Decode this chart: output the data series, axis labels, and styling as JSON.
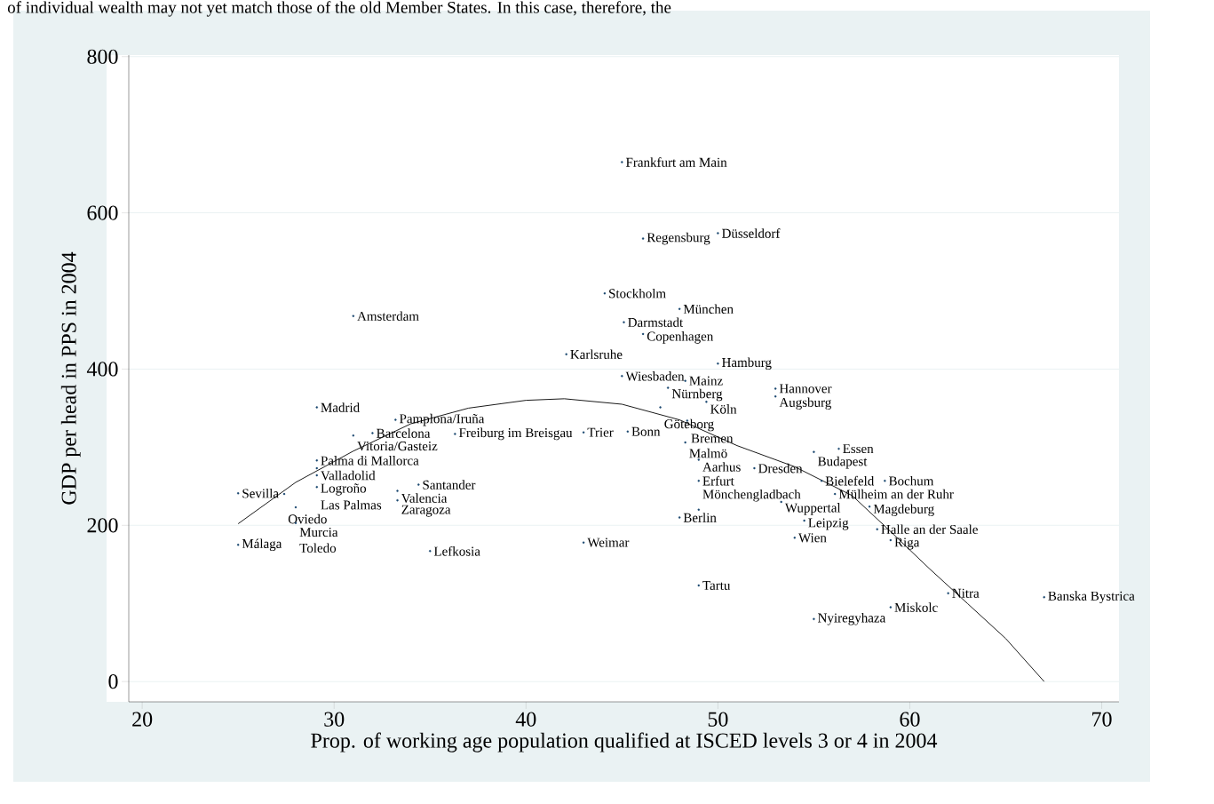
{
  "chart_data": {
    "type": "scatter",
    "xlabel": "Prop. of working age population qualified at ISCED levels 3 or 4 in 2004",
    "ylabel": "GDP per head in PPS in 2004",
    "xlim": [
      19.3,
      70.9
    ],
    "ylim": [
      -26,
      802
    ],
    "xticks": [
      20,
      30,
      40,
      50,
      60,
      70
    ],
    "yticks": [
      0,
      200,
      400,
      600,
      800
    ],
    "grid": "y",
    "series": [
      {
        "color": "#1a476f",
        "marker": "circle",
        "x": [
          45.0,
          46.1,
          50.0,
          44.1,
          48.0,
          45.1,
          46.1,
          31.0,
          42.1,
          50.0,
          45.0,
          48.3,
          47.4,
          53.0,
          53.0,
          49.4,
          47.0,
          29.1,
          33.2,
          48.4,
          45.3,
          43.0,
          32.0,
          36.3,
          31.0,
          48.3,
          56.3,
          55.0,
          49.0,
          29.1,
          51.9,
          29.1,
          29.1,
          49.0,
          55.4,
          58.7,
          34.4,
          29.1,
          33.3,
          25.0,
          27.4,
          56.1,
          33.3,
          53.3,
          57.9,
          28.0,
          49.0,
          48.0,
          54.5,
          28.0,
          58.3,
          54.0,
          59.0,
          43.0,
          25.0,
          35.0,
          49.0,
          62.0,
          67.0,
          59.0,
          55.0
        ],
        "values": [
          665,
          567,
          574,
          497,
          477,
          460,
          445,
          468,
          419,
          407,
          391,
          385,
          376,
          375,
          365,
          358,
          351,
          351,
          335,
          334,
          320,
          319,
          318,
          317,
          315,
          306,
          298,
          294,
          284,
          283,
          273,
          273,
          264,
          257,
          257,
          257,
          252,
          249,
          244,
          241,
          240,
          240,
          232,
          230,
          224,
          223,
          220,
          210,
          206,
          203,
          195,
          184,
          181,
          178,
          175,
          167,
          123,
          113,
          108,
          95,
          80
        ]
      },
      {
        "type": "line",
        "color": "#000000",
        "marker": "none",
        "x": [
          25,
          28,
          31,
          34,
          37,
          40,
          42,
          45,
          48,
          51,
          54,
          57,
          59,
          61,
          63,
          65,
          67
        ],
        "values": [
          202,
          255,
          295,
          330,
          350,
          360,
          362,
          355,
          335,
          302,
          275,
          238,
          192,
          145,
          100,
          55,
          0
        ]
      }
    ],
    "annotations": [
      "of individual wealth may not yet match those of the old Member States. In this case, therefore, the",
      {
        "text": "Frankfurt am Main",
        "x": 45.0,
        "y": 665
      },
      {
        "text": "Regensburg",
        "x": 46.1,
        "y": 567
      },
      {
        "text": "Düsseldorf",
        "x": 50.0,
        "y": 574
      },
      {
        "text": "Stockholm",
        "x": 44.1,
        "y": 497
      },
      {
        "text": "München",
        "x": 48.0,
        "y": 477
      },
      {
        "text": "Darmstadt",
        "x": 45.1,
        "y": 460
      },
      {
        "text": "Copenhagen",
        "x": 46.1,
        "y": 445
      },
      {
        "text": "Amsterdam",
        "x": 31.0,
        "y": 468
      },
      {
        "text": "Karlsruhe",
        "x": 42.1,
        "y": 419
      },
      {
        "text": "Hamburg",
        "x": 50.0,
        "y": 407
      },
      {
        "text": "Wiesbaden",
        "x": 45.0,
        "y": 391
      },
      {
        "text": "Mainz",
        "x": 48.3,
        "y": 385
      },
      {
        "text": "Nürnberg",
        "x": 47.4,
        "y": 376
      },
      {
        "text": "Hannover",
        "x": 53.0,
        "y": 375
      },
      {
        "text": "Augsburg",
        "x": 53.0,
        "y": 365
      },
      {
        "text": "Köln",
        "x": 49.4,
        "y": 358
      },
      {
        "text": "Göteborg",
        "x": 47.0,
        "y": 351
      },
      {
        "text": "Madrid",
        "x": 29.1,
        "y": 351
      },
      {
        "text": "Pamplona/Iruña",
        "x": 33.2,
        "y": 335
      },
      {
        "text": "Bremen",
        "x": 48.4,
        "y": 334
      },
      {
        "text": "Bonn",
        "x": 45.3,
        "y": 320
      },
      {
        "text": "Trier",
        "x": 43.0,
        "y": 319
      },
      {
        "text": "Barcelona",
        "x": 32.0,
        "y": 318
      },
      {
        "text": "Freiburg im Breisgau",
        "x": 36.3,
        "y": 317
      },
      {
        "text": "Vitoria/Gasteiz",
        "x": 31.0,
        "y": 315
      },
      {
        "text": "Malmö",
        "x": 48.3,
        "y": 306
      },
      {
        "text": "Essen",
        "x": 56.3,
        "y": 298
      },
      {
        "text": "Budapest",
        "x": 55.0,
        "y": 294
      },
      {
        "text": "Aarhus",
        "x": 49.0,
        "y": 284
      },
      {
        "text": "Palma di Mallorca",
        "x": 29.1,
        "y": 283
      },
      {
        "text": "Dresden",
        "x": 51.9,
        "y": 273
      },
      {
        "text": "Valladolid",
        "x": 29.1,
        "y": 273
      },
      {
        "text": "Logroño",
        "x": 29.1,
        "y": 264
      },
      {
        "text": "Erfurt",
        "x": 49.0,
        "y": 257
      },
      {
        "text": "Bielefeld",
        "x": 55.4,
        "y": 257
      },
      {
        "text": "Bochum",
        "x": 58.7,
        "y": 257
      },
      {
        "text": "Santander",
        "x": 34.4,
        "y": 252
      },
      {
        "text": "Las Palmas",
        "x": 29.1,
        "y": 249
      },
      {
        "text": "Valencia",
        "x": 33.3,
        "y": 244
      },
      {
        "text": "Sevilla",
        "x": 25.0,
        "y": 241
      },
      {
        "text": "Oviedo",
        "x": 27.4,
        "y": 240
      },
      {
        "text": "Mülheim an der Ruhr",
        "x": 56.1,
        "y": 240
      },
      {
        "text": "Zaragoza",
        "x": 33.3,
        "y": 232
      },
      {
        "text": "Wuppertal",
        "x": 53.3,
        "y": 230
      },
      {
        "text": "Magdeburg",
        "x": 57.9,
        "y": 224
      },
      {
        "text": "Murcia",
        "x": 28.0,
        "y": 223
      },
      {
        "text": "Mönchengladbach",
        "x": 49.0,
        "y": 220
      },
      {
        "text": "Berlin",
        "x": 48.0,
        "y": 210
      },
      {
        "text": "Leipzig",
        "x": 54.5,
        "y": 206
      },
      {
        "text": "Toledo",
        "x": 28.0,
        "y": 203
      },
      {
        "text": "Halle an der Saale",
        "x": 58.3,
        "y": 195
      },
      {
        "text": "Wien",
        "x": 54.0,
        "y": 184
      },
      {
        "text": "Riga",
        "x": 59.0,
        "y": 181
      },
      {
        "text": "Weimar",
        "x": 43.0,
        "y": 178
      },
      {
        "text": "Málaga",
        "x": 25.0,
        "y": 175
      },
      {
        "text": "Lefkosia",
        "x": 35.0,
        "y": 167
      },
      {
        "text": "Tartu",
        "x": 49.0,
        "y": 123
      },
      {
        "text": "Nitra",
        "x": 62.0,
        "y": 113
      },
      {
        "text": "Banska Bystrica",
        "x": 67.0,
        "y": 108
      },
      {
        "text": "Miskolc",
        "x": 59.0,
        "y": 95
      },
      {
        "text": "Nyiregyhaza",
        "x": 55.0,
        "y": 80
      }
    ]
  }
}
